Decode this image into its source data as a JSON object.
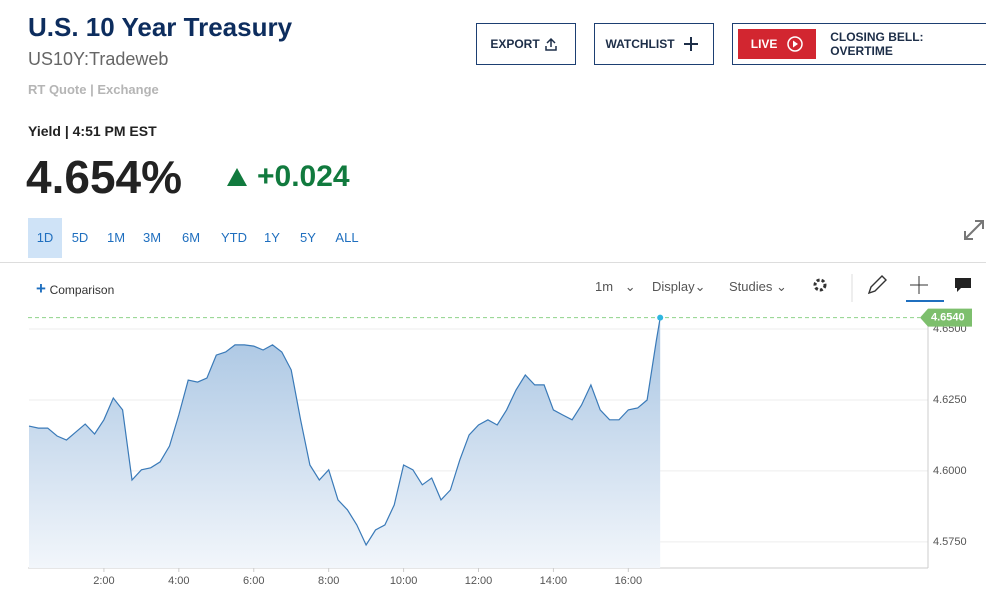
{
  "header": {
    "title": "U.S. 10 Year Treasury",
    "symbol": "US10Y:Tradeweb",
    "quote_source": "RT Quote | Exchange",
    "quote_time": "Yield | 4:51 PM EST",
    "price": "4.654%",
    "change": "+0.024"
  },
  "buttons": {
    "export": "EXPORT",
    "watchlist": "WATCHLIST",
    "live": "LIVE",
    "live_show": "CLOSING BELL: OVERTIME"
  },
  "ranges": [
    "1D",
    "5D",
    "1M",
    "3M",
    "6M",
    "YTD",
    "1Y",
    "5Y",
    "ALL"
  ],
  "toolbar": {
    "comparison": "Comparison",
    "interval": "1m",
    "display": "Display",
    "studies": "Studies"
  },
  "chart_data": {
    "type": "area",
    "x": [
      0,
      0.25,
      0.5,
      0.75,
      1,
      1.25,
      1.5,
      1.75,
      2,
      2.25,
      2.5,
      2.75,
      3,
      3.25,
      3.5,
      3.75,
      4,
      4.25,
      4.5,
      4.75,
      5,
      5.25,
      5.5,
      5.75,
      6,
      6.25,
      6.5,
      6.75,
      7,
      7.25,
      7.5,
      7.75,
      8,
      8.25,
      8.5,
      8.75,
      9,
      9.25,
      9.5,
      9.75,
      10,
      10.25,
      10.5,
      10.75,
      11,
      11.25,
      11.5,
      11.75,
      12,
      12.25,
      12.5,
      12.75,
      13,
      13.25,
      13.5,
      13.75,
      14,
      14.25,
      14.5,
      14.75,
      15,
      15.25,
      15.5,
      15.75,
      16,
      16.25,
      16.5,
      16.75,
      16.85
    ],
    "series": [
      {
        "name": "US10Y",
        "color": "#3a7ab8",
        "values": [
          4.6158,
          4.6151,
          4.6151,
          4.6123,
          4.6109,
          4.6137,
          4.6165,
          4.613,
          4.618,
          4.6257,
          4.6215,
          4.5968,
          4.6004,
          4.6011,
          4.6032,
          4.6088,
          4.6197,
          4.632,
          4.6313,
          4.6327,
          4.6408,
          4.6419,
          4.6444,
          4.6444,
          4.644,
          4.6426,
          4.6444,
          4.6419,
          4.6356,
          4.618,
          4.6021,
          4.5968,
          4.6004,
          4.5898,
          4.5863,
          4.581,
          4.5739,
          4.5792,
          4.581,
          4.588,
          4.6021,
          4.6004,
          4.5951,
          4.5975,
          4.5898,
          4.5933,
          4.6039,
          4.6127,
          4.6162,
          4.618,
          4.6162,
          4.6215,
          4.6285,
          4.6338,
          4.6303,
          4.6303,
          4.6215,
          4.6197,
          4.618,
          4.6232,
          4.6303,
          4.6215,
          4.618,
          4.618,
          4.6215,
          4.6222,
          4.625,
          4.6461,
          4.654
        ]
      }
    ],
    "xlim": [
      0,
      24
    ],
    "xticks": [
      {
        "value": 2,
        "label": "2:00"
      },
      {
        "value": 4,
        "label": "4:00"
      },
      {
        "value": 6,
        "label": "6:00"
      },
      {
        "value": 8,
        "label": "8:00"
      },
      {
        "value": 10,
        "label": "10:00"
      },
      {
        "value": 12,
        "label": "12:00"
      },
      {
        "value": 14,
        "label": "14:00"
      },
      {
        "value": 16,
        "label": "16:00"
      }
    ],
    "ylim": [
      4.5658,
      4.656
    ],
    "yticks": [
      {
        "value": 4.575,
        "label": "4.5750"
      },
      {
        "value": 4.6,
        "label": "4.6000"
      },
      {
        "value": 4.625,
        "label": "4.6250"
      },
      {
        "value": 4.65,
        "label": "4.6500"
      }
    ],
    "last_price": {
      "value": 4.654,
      "label": "4.6540"
    },
    "grid": true
  }
}
